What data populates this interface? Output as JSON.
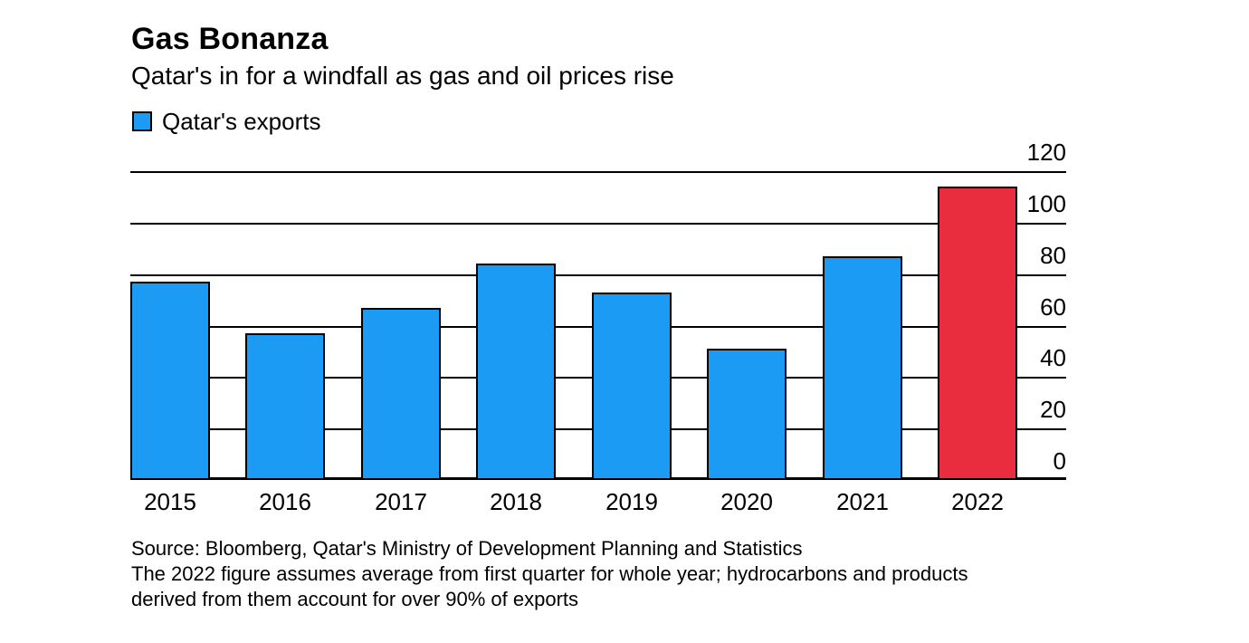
{
  "page": {
    "background": "#ffffff"
  },
  "header": {
    "title": "Gas Bonanza",
    "subtitle": "Qatar's in for a windfall as gas and oil prices rise"
  },
  "legend": {
    "label": "Qatar's exports",
    "swatch_color": "#1C9BF5"
  },
  "chart_data": {
    "type": "bar",
    "title": "Gas Bonanza",
    "subtitle": "Qatar's in for a windfall as gas and oil prices rise",
    "categories": [
      "2015",
      "2016",
      "2017",
      "2018",
      "2019",
      "2020",
      "2021",
      "2022"
    ],
    "series": [
      {
        "name": "Qatar's exports",
        "values": [
          77,
          57,
          67,
          84,
          73,
          51,
          87,
          114
        ]
      }
    ],
    "ylim": [
      0,
      120
    ],
    "yticks": [
      0,
      20,
      40,
      60,
      80,
      100,
      120
    ],
    "grid": "horizontal",
    "gridline_color": "#000000",
    "legend_position": "top-left",
    "bar_color_default": "#1C9BF5",
    "bar_color_highlight": "#EA2C3F",
    "highlight_category": "2022",
    "bar_border_color": "#000000"
  },
  "footer": {
    "source": "Source: Bloomberg, Qatar's Ministry of Development Planning and Statistics",
    "note_lines": [
      "The 2022 figure assumes average from first quarter for whole year; hydrocarbons and products",
      "derived from them account for over 90% of exports"
    ]
  }
}
